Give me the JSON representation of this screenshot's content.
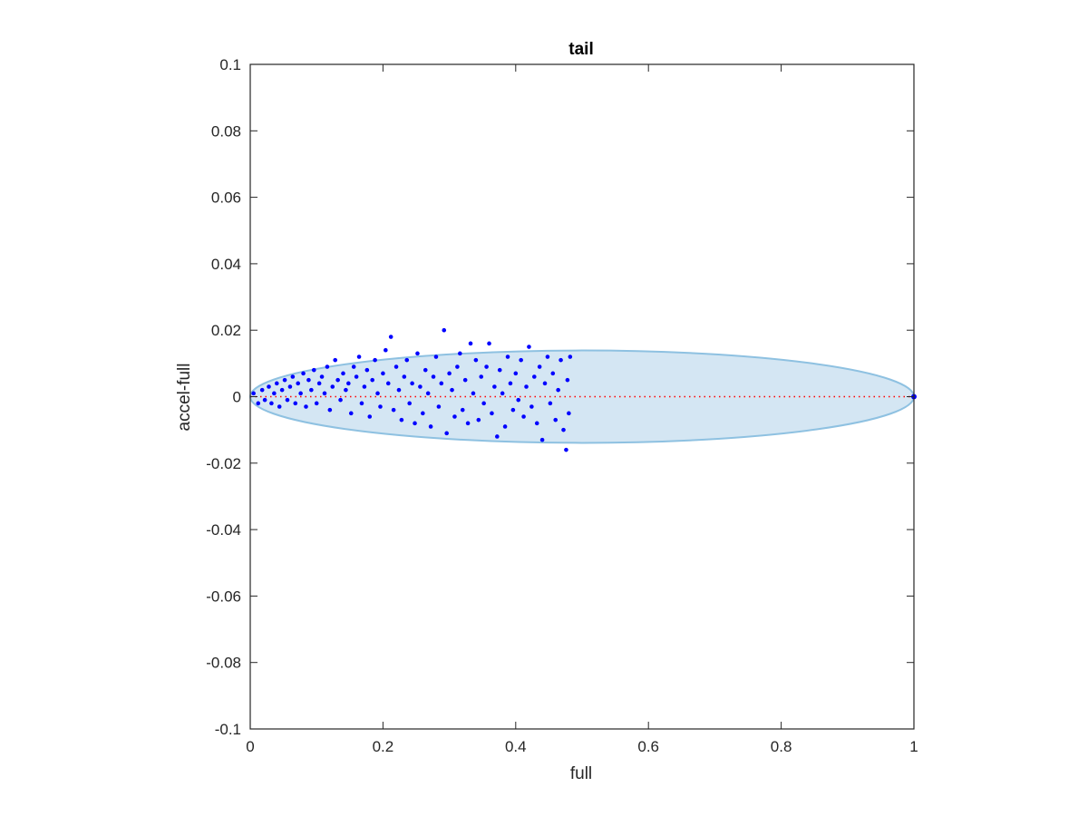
{
  "chart_data": {
    "type": "scatter",
    "title": "tail",
    "xlabel": "full",
    "ylabel": "accel-full",
    "xlim": [
      0,
      1
    ],
    "ylim": [
      -0.1,
      0.1
    ],
    "xticks": [
      0,
      0.2,
      0.4,
      0.6,
      0.8,
      1
    ],
    "xtick_labels": [
      "0",
      "0.2",
      "0.4",
      "0.6",
      "0.8",
      "1"
    ],
    "yticks": [
      -0.1,
      -0.08,
      -0.06,
      -0.04,
      -0.02,
      0,
      0.02,
      0.04,
      0.06,
      0.08,
      0.1
    ],
    "ytick_labels": [
      "-0.1",
      "-0.08",
      "-0.06",
      "-0.04",
      "-0.02",
      "0",
      "0.02",
      "0.04",
      "0.06",
      "0.08",
      "0.1"
    ],
    "grid": false,
    "colors": {
      "points": "#0000ff",
      "ellipse_fill": "#d4e6f3",
      "ellipse_edge": "#8ec1e1",
      "zero_line": "#ff0000",
      "axes": "#262626"
    },
    "ellipse": {
      "center": [
        0.5,
        0
      ],
      "semi_axis_x": 0.5,
      "semi_axis_y": 0.0139
    },
    "reference_line": {
      "y": 0,
      "from_x": 0,
      "to_x": 1,
      "style": "dotted"
    },
    "series": [
      {
        "points": [
          [
            0.005,
            0.001
          ],
          [
            0.012,
            -0.002
          ],
          [
            0.018,
            0.002
          ],
          [
            0.022,
            -0.001
          ],
          [
            0.028,
            0.003
          ],
          [
            0.032,
            -0.002
          ],
          [
            0.036,
            0.001
          ],
          [
            0.04,
            0.004
          ],
          [
            0.044,
            -0.003
          ],
          [
            0.048,
            0.002
          ],
          [
            0.052,
            0.005
          ],
          [
            0.056,
            -0.001
          ],
          [
            0.06,
            0.003
          ],
          [
            0.064,
            0.006
          ],
          [
            0.068,
            -0.002
          ],
          [
            0.072,
            0.004
          ],
          [
            0.076,
            0.001
          ],
          [
            0.08,
            0.007
          ],
          [
            0.084,
            -0.003
          ],
          [
            0.088,
            0.005
          ],
          [
            0.092,
            0.002
          ],
          [
            0.096,
            0.008
          ],
          [
            0.1,
            -0.002
          ],
          [
            0.104,
            0.004
          ],
          [
            0.108,
            0.006
          ],
          [
            0.112,
            0.001
          ],
          [
            0.116,
            0.009
          ],
          [
            0.12,
            -0.004
          ],
          [
            0.124,
            0.003
          ],
          [
            0.128,
            0.011
          ],
          [
            0.132,
            0.005
          ],
          [
            0.136,
            -0.001
          ],
          [
            0.14,
            0.007
          ],
          [
            0.144,
            0.002
          ],
          [
            0.148,
            0.004
          ],
          [
            0.152,
            -0.005
          ],
          [
            0.156,
            0.009
          ],
          [
            0.16,
            0.006
          ],
          [
            0.164,
            0.012
          ],
          [
            0.168,
            -0.002
          ],
          [
            0.172,
            0.003
          ],
          [
            0.176,
            0.008
          ],
          [
            0.18,
            -0.006
          ],
          [
            0.184,
            0.005
          ],
          [
            0.188,
            0.011
          ],
          [
            0.192,
            0.001
          ],
          [
            0.196,
            -0.003
          ],
          [
            0.2,
            0.007
          ],
          [
            0.204,
            0.014
          ],
          [
            0.208,
            0.004
          ],
          [
            0.212,
            0.018
          ],
          [
            0.216,
            -0.004
          ],
          [
            0.22,
            0.009
          ],
          [
            0.224,
            0.002
          ],
          [
            0.228,
            -0.007
          ],
          [
            0.232,
            0.006
          ],
          [
            0.236,
            0.011
          ],
          [
            0.24,
            -0.002
          ],
          [
            0.244,
            0.004
          ],
          [
            0.248,
            -0.008
          ],
          [
            0.252,
            0.013
          ],
          [
            0.256,
            0.003
          ],
          [
            0.26,
            -0.005
          ],
          [
            0.264,
            0.008
          ],
          [
            0.268,
            0.001
          ],
          [
            0.272,
            -0.009
          ],
          [
            0.276,
            0.006
          ],
          [
            0.28,
            0.012
          ],
          [
            0.284,
            -0.003
          ],
          [
            0.288,
            0.004
          ],
          [
            0.292,
            0.02
          ],
          [
            0.296,
            -0.011
          ],
          [
            0.3,
            0.007
          ],
          [
            0.304,
            0.002
          ],
          [
            0.308,
            -0.006
          ],
          [
            0.312,
            0.009
          ],
          [
            0.316,
            0.013
          ],
          [
            0.32,
            -0.004
          ],
          [
            0.324,
            0.005
          ],
          [
            0.328,
            -0.008
          ],
          [
            0.332,
            0.016
          ],
          [
            0.336,
            0.001
          ],
          [
            0.34,
            0.011
          ],
          [
            0.344,
            -0.007
          ],
          [
            0.348,
            0.006
          ],
          [
            0.352,
            -0.002
          ],
          [
            0.356,
            0.009
          ],
          [
            0.36,
            0.016
          ],
          [
            0.364,
            -0.005
          ],
          [
            0.368,
            0.003
          ],
          [
            0.372,
            -0.012
          ],
          [
            0.376,
            0.008
          ],
          [
            0.38,
            0.001
          ],
          [
            0.384,
            -0.009
          ],
          [
            0.388,
            0.012
          ],
          [
            0.392,
            0.004
          ],
          [
            0.396,
            -0.004
          ],
          [
            0.4,
            0.007
          ],
          [
            0.404,
            -0.001
          ],
          [
            0.408,
            0.011
          ],
          [
            0.412,
            -0.006
          ],
          [
            0.416,
            0.003
          ],
          [
            0.42,
            0.015
          ],
          [
            0.424,
            -0.003
          ],
          [
            0.428,
            0.006
          ],
          [
            0.432,
            -0.008
          ],
          [
            0.436,
            0.009
          ],
          [
            0.44,
            -0.013
          ],
          [
            0.444,
            0.004
          ],
          [
            0.448,
            0.012
          ],
          [
            0.452,
            -0.002
          ],
          [
            0.456,
            0.007
          ],
          [
            0.46,
            -0.007
          ],
          [
            0.464,
            0.002
          ],
          [
            0.468,
            0.011
          ],
          [
            0.472,
            -0.01
          ],
          [
            0.476,
            -0.016
          ],
          [
            0.478,
            0.005
          ],
          [
            0.48,
            -0.005
          ],
          [
            0.482,
            0.012
          ]
        ]
      },
      {
        "points": [
          [
            1.0,
            0.0
          ]
        ]
      }
    ]
  }
}
